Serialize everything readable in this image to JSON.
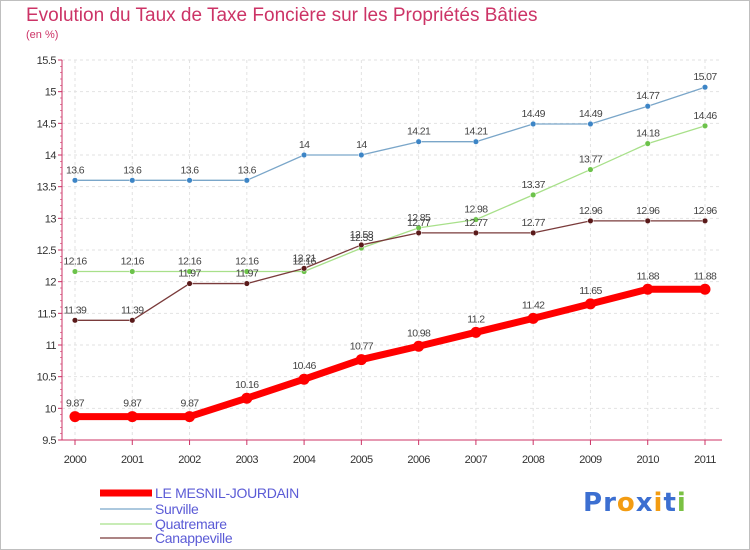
{
  "title": "Evolution du Taux de Taxe Foncière sur les Propriétés Bâties",
  "subtitle": "(en %)",
  "logo": [
    "P",
    "r",
    "o",
    "x",
    "i",
    "t",
    "i"
  ],
  "logo_colors": [
    "#3c6fd1",
    "#3c6fd1",
    "#f39c12",
    "#3c6fd1",
    "#f39c12",
    "#3c6fd1",
    "#7ac143"
  ],
  "chart_data": {
    "type": "line",
    "title": "Evolution du Taux de Taxe Foncière sur les Propriétés Bâties",
    "ylabel": "(en %)",
    "xlabel": "",
    "ylim": [
      9.5,
      15.5
    ],
    "yticks": [
      "9.5",
      "10",
      "10.5",
      "11",
      "11.5",
      "12",
      "12.5",
      "13",
      "13.5",
      "14",
      "14.5",
      "15",
      "15.5"
    ],
    "x": [
      "2000",
      "2001",
      "2002",
      "2003",
      "2004",
      "2005",
      "2006",
      "2007",
      "2008",
      "2009",
      "2010",
      "2011"
    ],
    "grid": true,
    "legend": "bottom-left",
    "series": [
      {
        "name": "LE MESNIL-JOURDAIN",
        "color": "#ff0000",
        "marker": "#ff0000",
        "width": 7,
        "values": [
          9.87,
          9.87,
          9.87,
          10.16,
          10.46,
          10.77,
          10.98,
          11.2,
          11.42,
          11.65,
          11.88,
          11.88
        ],
        "labels": [
          "9.87",
          "9.87",
          "9.87",
          "10.16",
          "10.46",
          "10.77",
          "10.98",
          "11.2",
          "11.42",
          "11.65",
          "11.88",
          "11.88"
        ]
      },
      {
        "name": "Surville",
        "color": "#7aa6c9",
        "marker": "#3d85c6",
        "width": 1.3,
        "values": [
          13.6,
          13.6,
          13.6,
          13.6,
          14,
          14,
          14.21,
          14.21,
          14.49,
          14.49,
          14.77,
          15.07
        ],
        "labels": [
          "13.6",
          "13.6",
          "13.6",
          "13.6",
          "14",
          "14",
          "14.21",
          "14.21",
          "14.49",
          "14.49",
          "14.77",
          "15.07"
        ]
      },
      {
        "name": "Quatremare",
        "color": "#a8e08a",
        "marker": "#6cc24a",
        "width": 1.3,
        "values": [
          12.16,
          12.16,
          12.16,
          12.16,
          12.16,
          12.53,
          12.85,
          12.98,
          13.37,
          13.77,
          14.18,
          14.46
        ],
        "labels": [
          "12.16",
          "12.16",
          "12.16",
          "12.16",
          "12.16",
          "12.53",
          "12.85",
          "12.98",
          "13.37",
          "13.77",
          "14.18",
          "14.46"
        ]
      },
      {
        "name": "Canappeville",
        "color": "#7a3b3b",
        "marker": "#5a1a1a",
        "width": 1.3,
        "values": [
          11.39,
          11.39,
          11.97,
          11.97,
          12.21,
          12.58,
          12.77,
          12.77,
          12.77,
          12.96,
          12.96,
          12.96
        ],
        "labels": [
          "11.39",
          "11.39",
          "11.97",
          "11.97",
          "12.21",
          "12.58",
          "12.77",
          "12.77",
          "12.77",
          "12.96",
          "12.96",
          "12.96"
        ]
      }
    ]
  }
}
